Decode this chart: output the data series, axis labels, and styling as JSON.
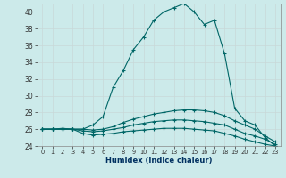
{
  "xlabel": "Humidex (Indice chaleur)",
  "background_color": "#cceaea",
  "grid_color": "#b0d4d4",
  "line_color": "#006666",
  "xlim": [
    -0.5,
    23.5
  ],
  "ylim": [
    24,
    41
  ],
  "yticks": [
    24,
    26,
    28,
    30,
    32,
    34,
    36,
    38,
    40
  ],
  "xticks": [
    0,
    1,
    2,
    3,
    4,
    5,
    6,
    7,
    8,
    9,
    10,
    11,
    12,
    13,
    14,
    15,
    16,
    17,
    18,
    19,
    20,
    21,
    22,
    23
  ],
  "series": [
    {
      "x": [
        0,
        1,
        2,
        3,
        4,
        5,
        6,
        7,
        8,
        9,
        10,
        11,
        12,
        13,
        14,
        15,
        16,
        17,
        18,
        19,
        20,
        21,
        22,
        23
      ],
      "y": [
        26,
        26,
        26.1,
        26,
        26,
        26.5,
        27.5,
        31,
        33,
        35.5,
        37,
        39,
        40,
        40.5,
        41,
        40,
        38.5,
        39,
        35,
        28.5,
        27,
        26.5,
        25,
        24
      ]
    },
    {
      "x": [
        0,
        1,
        2,
        3,
        4,
        5,
        6,
        7,
        8,
        9,
        10,
        11,
        12,
        13,
        14,
        15,
        16,
        17,
        18,
        19,
        20,
        21,
        22,
        23
      ],
      "y": [
        26,
        26,
        26,
        26,
        26,
        25.9,
        26,
        26.3,
        26.8,
        27.2,
        27.5,
        27.8,
        28,
        28.2,
        28.3,
        28.3,
        28.2,
        28,
        27.6,
        27,
        26.5,
        26,
        25.2,
        24.5
      ]
    },
    {
      "x": [
        0,
        1,
        2,
        3,
        4,
        5,
        6,
        7,
        8,
        9,
        10,
        11,
        12,
        13,
        14,
        15,
        16,
        17,
        18,
        19,
        20,
        21,
        22,
        23
      ],
      "y": [
        26,
        26,
        26,
        26,
        25.8,
        25.7,
        25.8,
        26.0,
        26.2,
        26.5,
        26.7,
        26.9,
        27,
        27.1,
        27.1,
        27,
        26.9,
        26.7,
        26.5,
        26,
        25.5,
        25.2,
        24.8,
        24.2
      ]
    },
    {
      "x": [
        0,
        1,
        2,
        3,
        4,
        5,
        6,
        7,
        8,
        9,
        10,
        11,
        12,
        13,
        14,
        15,
        16,
        17,
        18,
        19,
        20,
        21,
        22,
        23
      ],
      "y": [
        26,
        26,
        26,
        26,
        25.5,
        25.3,
        25.4,
        25.5,
        25.7,
        25.8,
        25.9,
        26,
        26.1,
        26.1,
        26.1,
        26,
        25.9,
        25.8,
        25.5,
        25.2,
        24.8,
        24.5,
        24.2,
        24
      ]
    }
  ]
}
